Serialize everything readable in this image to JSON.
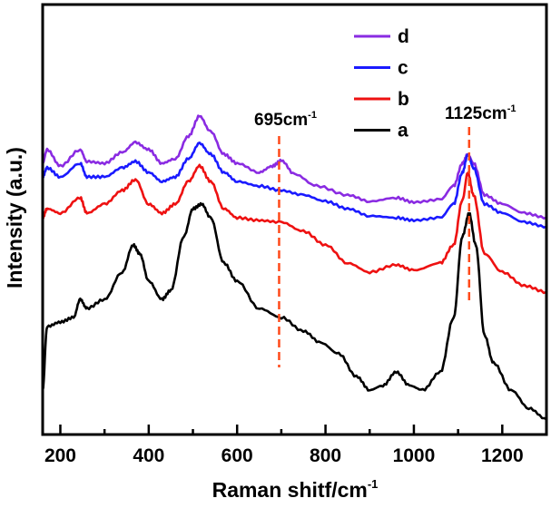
{
  "chart_data": {
    "type": "line",
    "title": "",
    "xlabel": "Raman shitf/cm",
    "xlabel_sup": "-1",
    "ylabel": "Intensity (a.u.)",
    "xlim": [
      160,
      1300
    ],
    "ylim": [
      0,
      474
    ],
    "xticks": [
      200,
      400,
      600,
      800,
      1000,
      1200
    ],
    "xticks_minor": [
      300,
      500,
      700,
      900,
      1100
    ],
    "grid": false,
    "legend_placement": "top-right",
    "series": [
      {
        "name": "d",
        "color": "#8a2be2",
        "x": [
          160,
          170,
          200,
          245,
          260,
          300,
          340,
          370,
          400,
          430,
          460,
          490,
          515,
          540,
          570,
          600,
          650,
          680,
          700,
          730,
          780,
          850,
          900,
          960,
          1000,
          1060,
          1090,
          1110,
          1122,
          1135,
          1160,
          1200,
          1250,
          1300
        ],
        "y": [
          299,
          314,
          296,
          314,
          301,
          299,
          311,
          322,
          314,
          299,
          304,
          329,
          351,
          334,
          309,
          299,
          289,
          296,
          302,
          287,
          274,
          264,
          257,
          261,
          256,
          259,
          274,
          299,
          309,
          299,
          264,
          254,
          244,
          239
        ]
      },
      {
        "name": "c",
        "color": "#1a1aff",
        "x": [
          160,
          170,
          200,
          245,
          260,
          300,
          340,
          370,
          400,
          430,
          460,
          490,
          515,
          540,
          570,
          600,
          650,
          700,
          750,
          800,
          850,
          900,
          960,
          1000,
          1060,
          1090,
          1110,
          1122,
          1135,
          1160,
          1200,
          1250,
          1300
        ],
        "y": [
          284,
          294,
          284,
          299,
          284,
          284,
          294,
          301,
          289,
          279,
          284,
          304,
          321,
          309,
          289,
          279,
          274,
          269,
          264,
          257,
          249,
          241,
          239,
          236,
          239,
          254,
          289,
          309,
          294,
          254,
          244,
          234,
          229
        ]
      },
      {
        "name": "b",
        "color": "#ee1111",
        "x": [
          160,
          170,
          200,
          245,
          260,
          300,
          340,
          370,
          400,
          430,
          460,
          490,
          515,
          540,
          570,
          600,
          650,
          700,
          750,
          800,
          850,
          900,
          960,
          1000,
          1060,
          1090,
          1110,
          1122,
          1135,
          1160,
          1200,
          1250,
          1300
        ],
        "y": [
          239,
          249,
          244,
          261,
          244,
          254,
          269,
          281,
          254,
          244,
          254,
          279,
          296,
          279,
          249,
          239,
          236,
          234,
          224,
          209,
          189,
          179,
          187,
          181,
          189,
          209,
          259,
          289,
          264,
          199,
          179,
          164,
          157
        ]
      },
      {
        "name": "a",
        "color": "#000000",
        "x": [
          160,
          170,
          200,
          230,
          245,
          260,
          300,
          340,
          365,
          380,
          400,
          430,
          450,
          480,
          500,
          520,
          540,
          570,
          600,
          650,
          700,
          750,
          790,
          830,
          870,
          900,
          930,
          960,
          990,
          1020,
          1060,
          1090,
          1110,
          1125,
          1140,
          1160,
          1180,
          1220,
          1260,
          1300
        ],
        "y": [
          49,
          119,
          124,
          129,
          149,
          139,
          149,
          179,
          209,
          199,
          169,
          149,
          159,
          219,
          249,
          254,
          239,
          189,
          169,
          139,
          129,
          114,
          101,
          89,
          64,
          49,
          54,
          69,
          54,
          49,
          69,
          129,
          219,
          244,
          209,
          109,
          79,
          49,
          29,
          17
        ]
      }
    ],
    "annotations": [
      {
        "label": "695cm",
        "sup": "-1",
        "x": 695
      },
      {
        "label": "1125cm",
        "sup": "-1",
        "x": 1125
      }
    ]
  }
}
